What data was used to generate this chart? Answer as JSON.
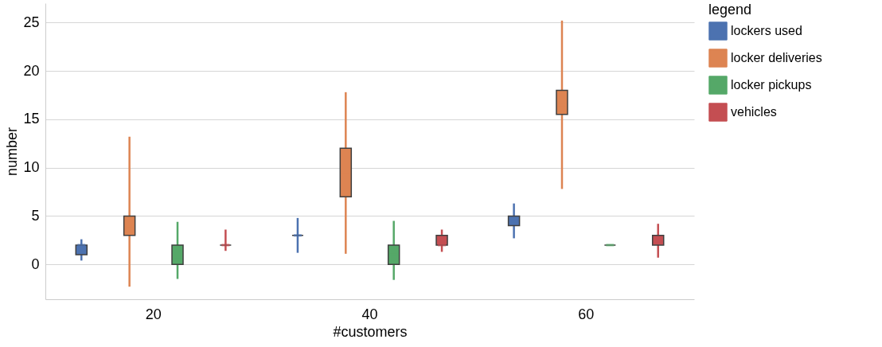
{
  "chart_data": {
    "type": "box",
    "xlabel": "#customers",
    "ylabel": "number",
    "legend_title": "legend",
    "categories": [
      "20",
      "40",
      "60"
    ],
    "series": [
      {
        "name": "lockers used",
        "color": "#4c72b0",
        "boxes": [
          {
            "low": 0.4,
            "q1": 1,
            "median": 2,
            "q3": 2,
            "high": 2.6
          },
          {
            "low": 1.2,
            "q1": 3,
            "median": 3,
            "q3": 3,
            "high": 4.8
          },
          {
            "low": 2.7,
            "q1": 4,
            "median": 4.5,
            "q3": 5,
            "high": 6.3
          }
        ]
      },
      {
        "name": "locker deliveries",
        "color": "#dd8452",
        "boxes": [
          {
            "low": -2.3,
            "q1": 3,
            "median": 4,
            "q3": 5,
            "high": 13.2
          },
          {
            "low": 1.1,
            "q1": 7,
            "median": 9.5,
            "q3": 12,
            "high": 17.8
          },
          {
            "low": 7.8,
            "q1": 15.5,
            "median": 16.5,
            "q3": 18,
            "high": 25.2
          }
        ]
      },
      {
        "name": "locker pickups",
        "color": "#55a868",
        "boxes": [
          {
            "low": -1.5,
            "q1": 0,
            "median": 0.5,
            "q3": 2,
            "high": 4.4
          },
          {
            "low": -1.6,
            "q1": 0,
            "median": 1,
            "q3": 2,
            "high": 4.5
          },
          {
            "low": 2,
            "q1": 2,
            "median": 2,
            "q3": 2,
            "high": 2
          }
        ]
      },
      {
        "name": "vehicles",
        "color": "#c44e52",
        "boxes": [
          {
            "low": 1.4,
            "q1": 2,
            "median": 2,
            "q3": 2,
            "high": 3.6
          },
          {
            "low": 1.3,
            "q1": 2,
            "median": 2,
            "q3": 3,
            "high": 3.6
          },
          {
            "low": 0.7,
            "q1": 2,
            "median": 2.4,
            "q3": 3,
            "high": 4.2
          }
        ]
      }
    ],
    "ylim": [
      -3.6,
      27
    ],
    "yticks": [
      0,
      5,
      10,
      15,
      20,
      25
    ],
    "grid": "y",
    "legend": "right"
  }
}
